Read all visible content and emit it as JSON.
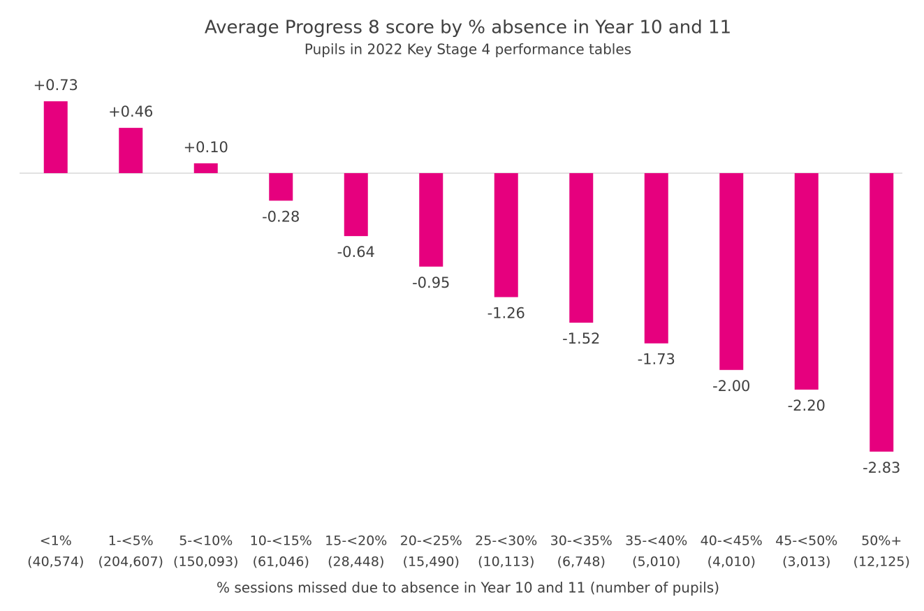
{
  "chart_data": {
    "type": "bar",
    "title": "Average Progress 8 score by % absence in Year 10 and 11",
    "subtitle": "Pupils in 2022 Key Stage 4 performance tables",
    "x_label": "% sessions missed due to absence in Year 10 and 11 (number of pupils)",
    "categories": [
      "<1%",
      "1-<5%",
      "5-<10%",
      "10-<15%",
      "15-<20%",
      "20-<25%",
      "25-<30%",
      "30-<35%",
      "35-<40%",
      "40-<45%",
      "45-<50%",
      "50%+"
    ],
    "category_sublabels": [
      "(40,574)",
      "(204,607)",
      "(150,093)",
      "(61,046)",
      "(28,448)",
      "(15,490)",
      "(10,113)",
      "(6,748)",
      "(5,010)",
      "(4,010)",
      "(3,013)",
      "(12,125)"
    ],
    "values": [
      0.73,
      0.46,
      0.1,
      -0.28,
      -0.64,
      -0.95,
      -1.26,
      -1.52,
      -1.73,
      -2.0,
      -2.2,
      -2.83
    ],
    "value_labels": [
      "+0.73",
      "+0.46",
      "+0.10",
      "-0.28",
      "-0.64",
      "-0.95",
      "-1.26",
      "-1.52",
      "-1.73",
      "-2.00",
      "-2.20",
      "-2.83"
    ],
    "color": "#e6007e",
    "ylim": [
      -3.3,
      1.0
    ]
  }
}
